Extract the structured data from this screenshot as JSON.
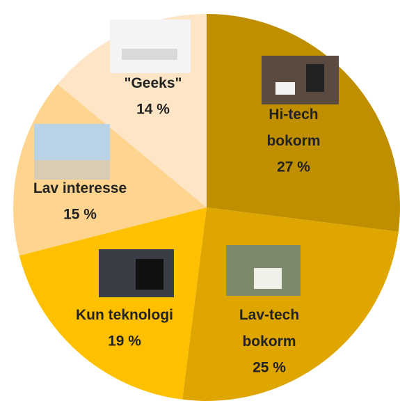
{
  "chart_data": {
    "type": "pie",
    "categories": [
      "Hi-tech\nbokorm",
      "Lav-tech\nbokorm",
      "Kun teknologi",
      "Lav interesse",
      "\"Geeks\""
    ],
    "values": [
      27,
      25,
      19,
      15,
      14
    ],
    "value_labels": [
      "27 %",
      "25 %",
      "19 %",
      "15 %",
      "14 %"
    ],
    "colors": [
      "#BF8F00",
      "#DFA600",
      "#FFC000",
      "#FFD48F",
      "#FDE5C6"
    ]
  }
}
